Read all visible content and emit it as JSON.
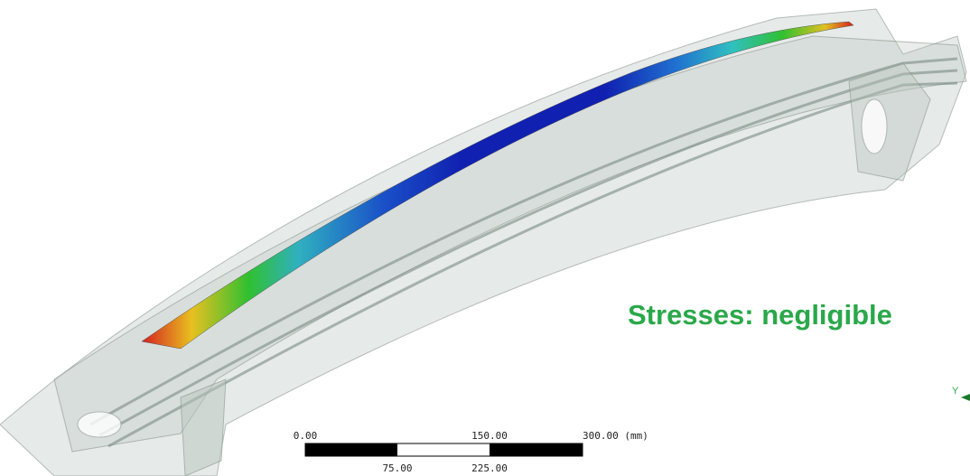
{
  "annotation": "Stresses: negligible",
  "scale_bar": {
    "top_labels": [
      "0.00",
      "150.00",
      "300.00 (mm)"
    ],
    "bottom_labels": [
      "75.00",
      "225.00"
    ]
  },
  "triad": {
    "axis_label": "Y"
  }
}
